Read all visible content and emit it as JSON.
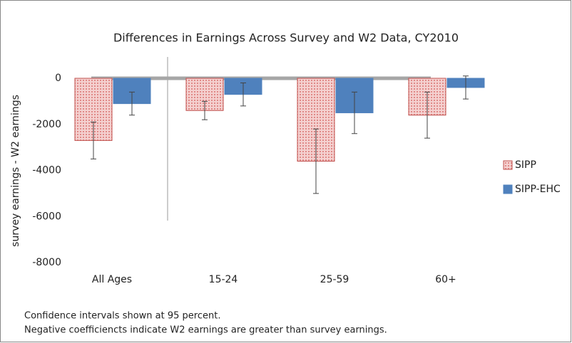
{
  "chart_data": {
    "type": "bar",
    "title": "Differences in Earnings Across Survey and W2 Data, CY2010",
    "y_label": "survey earnings - W2 earnings",
    "categories": [
      "All Ages",
      "15-24",
      "25-59",
      "60+"
    ],
    "series": [
      {
        "name": "SIPP",
        "color": "#c0504d",
        "values": [
          -2700,
          -1400,
          -3600,
          -1600
        ],
        "errors": [
          800,
          400,
          1400,
          1000
        ]
      },
      {
        "name": "SIPP-EHC",
        "color": "#4f81bd",
        "values": [
          -1100,
          -700,
          -1500,
          -400
        ],
        "errors": [
          500,
          500,
          900,
          500
        ]
      }
    ],
    "ylim": [
      -8000,
      0
    ],
    "yticks": [
      0,
      -2000,
      -4000,
      -6000,
      -8000
    ],
    "grid": false,
    "legend": "right",
    "notes": [
      "Confidence intervals shown at 95 percent.",
      "Negative coefficiencts indicate W2 earnings are greater than survey earnings."
    ]
  }
}
